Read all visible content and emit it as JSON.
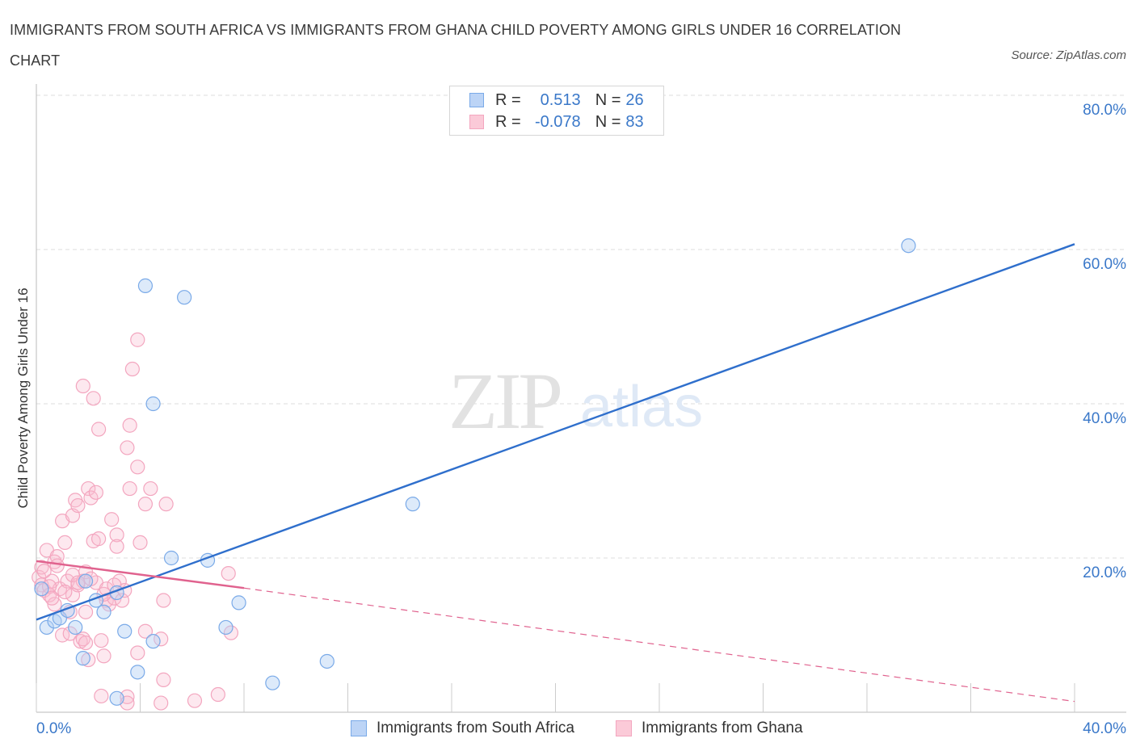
{
  "title": "IMMIGRANTS FROM SOUTH AFRICA VS IMMIGRANTS FROM GHANA CHILD POVERTY AMONG GIRLS UNDER 16 CORRELATION CHART",
  "source": "Source: ZipAtlas.com",
  "watermark": {
    "zip": "ZIP",
    "atlas": "atlas"
  },
  "legend": {
    "r_label": "R =",
    "n_label": "N =",
    "series": [
      {
        "r": "0.513",
        "n": "26"
      },
      {
        "r": "-0.078",
        "n": "83"
      }
    ]
  },
  "chart_data": {
    "type": "scatter",
    "title": "IMMIGRANTS FROM SOUTH AFRICA VS IMMIGRANTS FROM GHANA CHILD POVERTY AMONG GIRLS UNDER 16 CORRELATION CHART",
    "xlabel": "",
    "ylabel": "Child Poverty Among Girls Under 16",
    "xlim": [
      0,
      40
    ],
    "ylim": [
      0,
      80
    ],
    "x_ticks": [
      "0.0%",
      "40.0%"
    ],
    "y_ticks": [
      {
        "value": 20,
        "label": "20.0%"
      },
      {
        "value": 40,
        "label": "40.0%"
      },
      {
        "value": 60,
        "label": "60.0%"
      },
      {
        "value": 80,
        "label": "80.0%"
      }
    ],
    "grid": true,
    "legend_position": "bottom",
    "series": [
      {
        "name": "Immigrants from South Africa",
        "color": "#7aaae8",
        "line_color": "#2f6fcc",
        "trend": {
          "x": [
            0,
            40
          ],
          "y": [
            12.0,
            60.7
          ]
        },
        "points": [
          [
            0.2,
            16.0
          ],
          [
            0.4,
            11.0
          ],
          [
            0.7,
            11.8
          ],
          [
            0.9,
            12.2
          ],
          [
            1.2,
            13.2
          ],
          [
            1.5,
            11.0
          ],
          [
            1.8,
            7.0
          ],
          [
            1.9,
            17.0
          ],
          [
            2.3,
            14.5
          ],
          [
            2.6,
            13.0
          ],
          [
            3.1,
            15.5
          ],
          [
            3.1,
            1.8
          ],
          [
            3.4,
            10.5
          ],
          [
            3.9,
            5.2
          ],
          [
            4.2,
            55.3
          ],
          [
            4.5,
            40.0
          ],
          [
            4.5,
            9.2
          ],
          [
            5.2,
            20.0
          ],
          [
            5.7,
            53.8
          ],
          [
            6.6,
            19.7
          ],
          [
            7.3,
            11.0
          ],
          [
            7.8,
            14.2
          ],
          [
            9.1,
            3.8
          ],
          [
            11.2,
            6.6
          ],
          [
            14.5,
            27.0
          ],
          [
            33.6,
            60.5
          ]
        ]
      },
      {
        "name": "Immigrants from Ghana",
        "color": "#f3a6bf",
        "line_color": "#e0628e",
        "trend": {
          "x": [
            0,
            8
          ],
          "y": [
            19.6,
            16.1
          ]
        },
        "trend_ext": {
          "x": [
            8,
            40
          ],
          "y": [
            16.1,
            1.4
          ]
        },
        "points": [
          [
            0.1,
            17.5
          ],
          [
            0.2,
            16.5
          ],
          [
            0.2,
            18.8
          ],
          [
            0.3,
            15.8
          ],
          [
            0.4,
            21.0
          ],
          [
            0.5,
            15.2
          ],
          [
            0.6,
            17.0
          ],
          [
            0.7,
            19.5
          ],
          [
            0.7,
            14.0
          ],
          [
            0.8,
            20.2
          ],
          [
            0.9,
            16.0
          ],
          [
            1.0,
            24.8
          ],
          [
            1.0,
            10.0
          ],
          [
            1.1,
            22.0
          ],
          [
            1.2,
            17.0
          ],
          [
            1.3,
            13.0
          ],
          [
            1.3,
            10.2
          ],
          [
            1.4,
            25.5
          ],
          [
            1.4,
            15.2
          ],
          [
            1.5,
            27.5
          ],
          [
            1.6,
            26.8
          ],
          [
            1.6,
            16.5
          ],
          [
            1.7,
            9.2
          ],
          [
            1.8,
            17.0
          ],
          [
            1.8,
            9.5
          ],
          [
            1.8,
            42.3
          ],
          [
            1.9,
            18.2
          ],
          [
            1.9,
            13.0
          ],
          [
            2.0,
            29.0
          ],
          [
            2.0,
            6.8
          ],
          [
            2.1,
            27.8
          ],
          [
            2.2,
            40.7
          ],
          [
            2.2,
            22.2
          ],
          [
            2.3,
            28.5
          ],
          [
            2.3,
            16.8
          ],
          [
            2.4,
            36.7
          ],
          [
            2.4,
            22.5
          ],
          [
            2.5,
            9.3
          ],
          [
            2.5,
            2.1
          ],
          [
            2.6,
            7.3
          ],
          [
            2.7,
            14.5
          ],
          [
            2.8,
            14.0
          ],
          [
            2.9,
            25.0
          ],
          [
            3.0,
            14.8
          ],
          [
            3.1,
            23.0
          ],
          [
            3.1,
            21.5
          ],
          [
            3.2,
            17.0
          ],
          [
            3.3,
            14.5
          ],
          [
            3.4,
            15.8
          ],
          [
            3.5,
            2.0
          ],
          [
            3.5,
            1.2
          ],
          [
            3.5,
            34.3
          ],
          [
            3.6,
            37.2
          ],
          [
            3.6,
            29.0
          ],
          [
            3.7,
            44.5
          ],
          [
            3.9,
            31.8
          ],
          [
            3.9,
            7.7
          ],
          [
            3.9,
            48.3
          ],
          [
            4.0,
            22.0
          ],
          [
            4.2,
            27.0
          ],
          [
            4.2,
            10.5
          ],
          [
            4.4,
            29.0
          ],
          [
            4.8,
            9.5
          ],
          [
            4.8,
            1.2
          ],
          [
            4.9,
            4.2
          ],
          [
            4.9,
            14.5
          ],
          [
            5.0,
            27.0
          ],
          [
            6.1,
            1.5
          ],
          [
            7.0,
            2.3
          ],
          [
            7.4,
            18.0
          ],
          [
            7.5,
            10.3
          ],
          [
            0.3,
            18.3
          ],
          [
            0.5,
            16.3
          ],
          [
            0.6,
            14.8
          ],
          [
            1.1,
            15.6
          ],
          [
            1.4,
            17.8
          ],
          [
            1.9,
            9.0
          ],
          [
            2.6,
            15.3
          ],
          [
            2.7,
            16.0
          ],
          [
            3.0,
            16.5
          ],
          [
            0.8,
            19.0
          ],
          [
            1.6,
            16.8
          ],
          [
            2.1,
            17.3
          ]
        ]
      }
    ]
  }
}
